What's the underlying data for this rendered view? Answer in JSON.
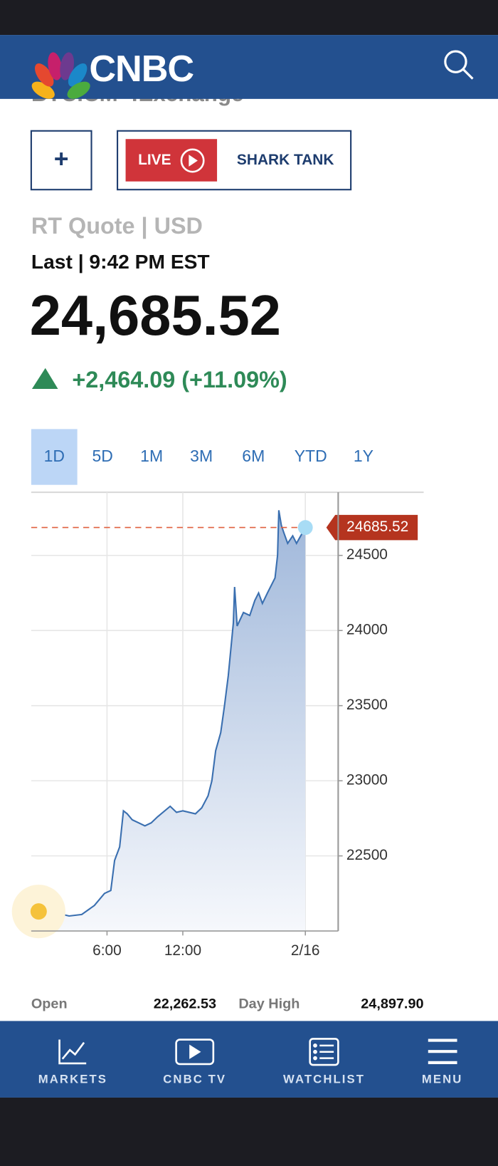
{
  "header": {
    "logo": "CNBC"
  },
  "symbol": "BTC.CM=:Exchange",
  "buttons": {
    "add": "+",
    "live": "LIVE",
    "show": "SHARK TANK"
  },
  "quote": {
    "source": "RT Quote | USD",
    "time": "Last | 9:42 PM EST",
    "price": "24,685.52",
    "change": "+2,464.09 (+11.09%)"
  },
  "tabs": [
    "1D",
    "5D",
    "1M",
    "3M",
    "6M",
    "YTD",
    "1Y"
  ],
  "chart_data": {
    "type": "line",
    "x": [
      0.5,
      1,
      2,
      3,
      4,
      5,
      5.8,
      6.3,
      6.6,
      7.0,
      7.3,
      7.6,
      8,
      8.5,
      9,
      9.5,
      10,
      11,
      11.5,
      12,
      13,
      13.5,
      14,
      14.3,
      14.6,
      15,
      15.3,
      15.6,
      16.0,
      16.1,
      16.3,
      16.8,
      17.3,
      17.7,
      18,
      18.3,
      18.7,
      19.3,
      19.5,
      19.6,
      19.8,
      20.0,
      20.3,
      20.7,
      21,
      21.4,
      21.7
    ],
    "series": [
      {
        "color": "#3a6fb0",
        "values": [
          22130,
          22150,
          22120,
          22100,
          22110,
          22170,
          22250,
          22270,
          22470,
          22560,
          22800,
          22780,
          22740,
          22720,
          22700,
          22720,
          22760,
          22830,
          22790,
          22800,
          22780,
          22820,
          22900,
          23000,
          23200,
          23320,
          23500,
          23700,
          24050,
          24290,
          24030,
          24120,
          24100,
          24200,
          24250,
          24180,
          24250,
          24350,
          24500,
          24800,
          24700,
          24650,
          24580,
          24630,
          24580,
          24640,
          24685.52
        ]
      }
    ],
    "xlim": [
      0,
      24.3
    ],
    "xticks": [
      {
        "value": 6,
        "label": "6:00"
      },
      {
        "value": 12,
        "label": "12:00"
      },
      {
        "value": 21.7,
        "label": "2/16"
      }
    ],
    "ylim": [
      22000,
      24920
    ],
    "yticks": [
      22500,
      23000,
      23500,
      24000,
      24500
    ],
    "grid": true
  },
  "stats": [
    {
      "label": "Open",
      "value": "22,262.53"
    },
    {
      "label": "Day High",
      "value": "24,897.90"
    }
  ],
  "nav": [
    "MARKETS",
    "CNBC TV",
    "WATCHLIST",
    "MENU"
  ]
}
